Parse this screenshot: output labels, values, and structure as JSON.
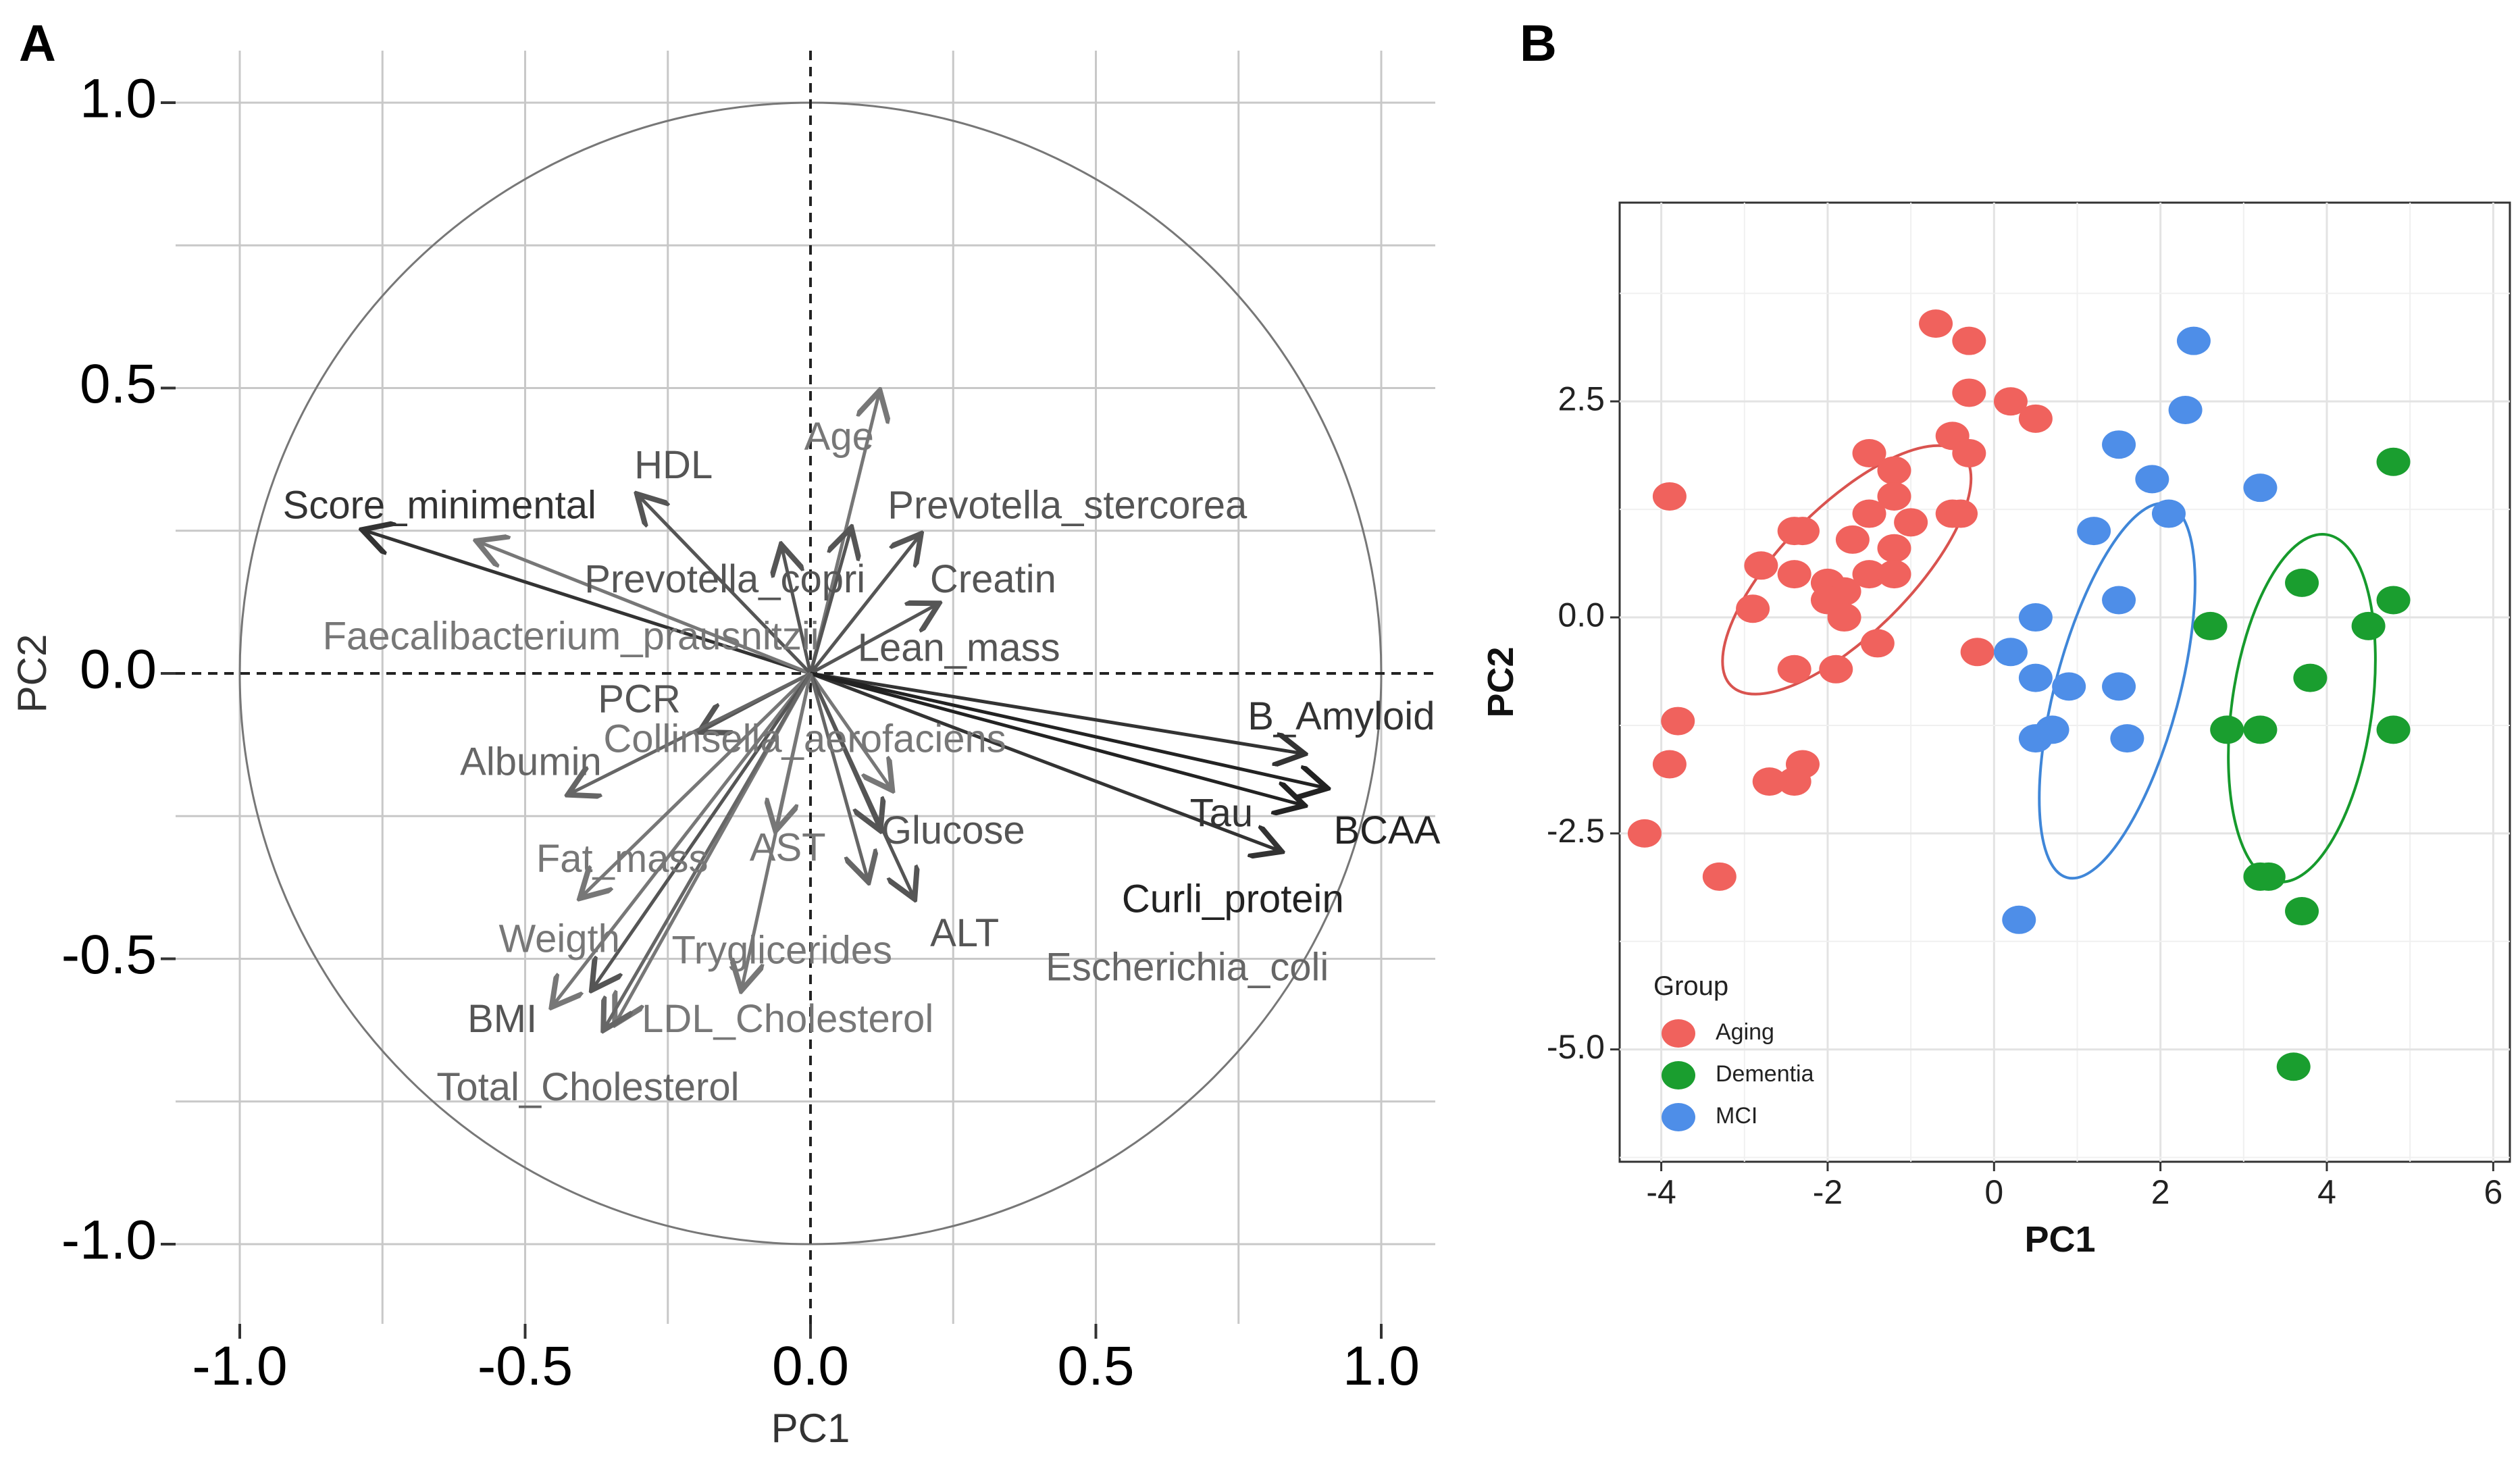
{
  "panels": {
    "a": "A",
    "b": "B"
  },
  "chart_data": [
    {
      "type": "scatter",
      "subtype": "pca-variable-correlation-circle",
      "xlabel": "PC1",
      "ylabel": "PC2",
      "xlim": [
        -1.0,
        1.0
      ],
      "ylim": [
        -1.0,
        1.0
      ],
      "xticks": [
        "-1.0",
        "-0.5",
        "0.0",
        "0.5",
        "1.0"
      ],
      "yticks": [
        "1.0",
        "0.5",
        "0.0",
        "-0.5",
        "-1.0"
      ],
      "grid": true,
      "unit_circle": true,
      "variables": [
        {
          "name": "Score_minimental",
          "x": -0.78,
          "y": 0.25,
          "label_x": -0.65,
          "label_y": 0.29,
          "color": "#333333"
        },
        {
          "name": "Faecalibacterium_prausnitzii",
          "x": -0.58,
          "y": 0.23,
          "label_x": -0.42,
          "label_y": 0.06,
          "color": "#777777"
        },
        {
          "name": "HDL",
          "x": -0.3,
          "y": 0.31,
          "label_x": -0.24,
          "label_y": 0.36,
          "color": "#555555"
        },
        {
          "name": "Age",
          "x": 0.12,
          "y": 0.49,
          "label_x": 0.05,
          "label_y": 0.41,
          "color": "#777777"
        },
        {
          "name": "Prevotella_stercorea",
          "x": 0.19,
          "y": 0.24,
          "label_x": 0.45,
          "label_y": 0.29,
          "color": "#555555"
        },
        {
          "name": "Prevotella_copri",
          "x": -0.05,
          "y": 0.22,
          "label_x": -0.15,
          "label_y": 0.16,
          "color": "#555555"
        },
        {
          "name": "Creatin",
          "x": 0.22,
          "y": 0.12,
          "label_x": 0.32,
          "label_y": 0.16,
          "color": "#555555"
        },
        {
          "name": "Lean_mass",
          "x": 0.07,
          "y": 0.25,
          "label_x": 0.26,
          "label_y": 0.04,
          "color": "#555555"
        },
        {
          "name": "PCR",
          "x": -0.19,
          "y": -0.1,
          "label_x": -0.3,
          "label_y": -0.05,
          "color": "#555555"
        },
        {
          "name": "Albumin",
          "x": -0.42,
          "y": -0.21,
          "label_x": -0.49,
          "label_y": -0.16,
          "color": "#666666"
        },
        {
          "name": "Collinsella_aerofaciens",
          "x": 0.14,
          "y": -0.2,
          "label_x": -0.01,
          "label_y": -0.12,
          "color": "#777777"
        },
        {
          "name": "B_Amyloid",
          "x": 0.86,
          "y": -0.14,
          "label_x": 0.93,
          "label_y": -0.08,
          "color": "#333333"
        },
        {
          "name": "BCAA",
          "x": 0.9,
          "y": -0.2,
          "label_x": 1.01,
          "label_y": -0.28,
          "color": "#222222"
        },
        {
          "name": "Tau",
          "x": 0.82,
          "y": -0.31,
          "label_x": 0.72,
          "label_y": -0.25,
          "color": "#333333"
        },
        {
          "name": "Curli_protein",
          "x": 0.86,
          "y": -0.23,
          "label_x": 0.74,
          "label_y": -0.4,
          "color": "#222222"
        },
        {
          "name": "Glucose",
          "x": 0.12,
          "y": -0.27,
          "label_x": 0.25,
          "label_y": -0.28,
          "color": "#555555"
        },
        {
          "name": "AST",
          "x": -0.06,
          "y": -0.27,
          "label_x": -0.04,
          "label_y": -0.31,
          "color": "#777777"
        },
        {
          "name": "ALT",
          "x": 0.18,
          "y": -0.39,
          "label_x": 0.27,
          "label_y": -0.46,
          "color": "#555555"
        },
        {
          "name": "Escherichia_coli",
          "x": 0.1,
          "y": -0.36,
          "label_x": 0.66,
          "label_y": -0.52,
          "color": "#666666"
        },
        {
          "name": "Fat_mass",
          "x": -0.4,
          "y": -0.39,
          "label_x": -0.33,
          "label_y": -0.33,
          "color": "#777777"
        },
        {
          "name": "Weigth",
          "x": -0.45,
          "y": -0.58,
          "label_x": -0.44,
          "label_y": -0.47,
          "color": "#777777"
        },
        {
          "name": "Tryglicerides",
          "x": -0.12,
          "y": -0.55,
          "label_x": -0.05,
          "label_y": -0.49,
          "color": "#777777"
        },
        {
          "name": "BMI",
          "x": -0.38,
          "y": -0.55,
          "label_x": -0.54,
          "label_y": -0.61,
          "color": "#555555"
        },
        {
          "name": "LDL_Cholesterol",
          "x": -0.34,
          "y": -0.61,
          "label_x": -0.04,
          "label_y": -0.61,
          "color": "#777777"
        },
        {
          "name": "Total_Cholesterol",
          "x": -0.36,
          "y": -0.62,
          "label_x": -0.39,
          "label_y": -0.73,
          "color": "#666666"
        }
      ]
    },
    {
      "type": "scatter",
      "xlabel": "PC1",
      "ylabel": "PC2",
      "xlim": [
        -4.5,
        6.2
      ],
      "ylim": [
        -6.3,
        4.8
      ],
      "xticks": [
        "-4",
        "-2",
        "0",
        "2",
        "4",
        "6"
      ],
      "yticks": [
        "2.5",
        "0.0",
        "-2.5",
        "-5.0"
      ],
      "grid": true,
      "legend": {
        "title": "Group",
        "placement": "bottom-left"
      },
      "series": [
        {
          "name": "Aging",
          "color": "#F0625D",
          "points": [
            [
              -0.7,
              3.4
            ],
            [
              -0.3,
              3.2
            ],
            [
              -0.3,
              2.6
            ],
            [
              0.2,
              2.5
            ],
            [
              0.5,
              2.3
            ],
            [
              -0.5,
              2.1
            ],
            [
              -0.3,
              1.9
            ],
            [
              -1.5,
              1.9
            ],
            [
              -1.2,
              1.7
            ],
            [
              -1.2,
              1.4
            ],
            [
              -1.5,
              1.2
            ],
            [
              -1.0,
              1.1
            ],
            [
              -0.5,
              1.2
            ],
            [
              -0.4,
              1.2
            ],
            [
              -1.7,
              0.9
            ],
            [
              -1.2,
              0.8
            ],
            [
              -2.4,
              1.0
            ],
            [
              -2.3,
              1.0
            ],
            [
              -2.8,
              0.6
            ],
            [
              -2.4,
              0.5
            ],
            [
              -2.0,
              0.4
            ],
            [
              -1.5,
              0.5
            ],
            [
              -1.8,
              0.3
            ],
            [
              -1.2,
              0.5
            ],
            [
              -2.9,
              0.1
            ],
            [
              -2.0,
              0.2
            ],
            [
              -1.8,
              0.0
            ],
            [
              -1.4,
              -0.3
            ],
            [
              -2.4,
              -0.6
            ],
            [
              -1.9,
              -0.6
            ],
            [
              -0.2,
              -0.4
            ],
            [
              -3.9,
              1.4
            ],
            [
              -3.8,
              -1.2
            ],
            [
              -3.9,
              -1.7
            ],
            [
              -2.3,
              -1.7
            ],
            [
              -2.4,
              -1.9
            ],
            [
              -2.7,
              -1.9
            ],
            [
              -4.2,
              -2.5
            ],
            [
              -3.3,
              -3.0
            ]
          ]
        },
        {
          "name": "Dementia",
          "color": "#1A9E2F",
          "points": [
            [
              4.8,
              1.8
            ],
            [
              3.7,
              0.4
            ],
            [
              4.8,
              0.2
            ],
            [
              4.5,
              -0.1
            ],
            [
              2.6,
              -0.1
            ],
            [
              3.8,
              -0.7
            ],
            [
              2.8,
              -1.3
            ],
            [
              3.2,
              -1.3
            ],
            [
              4.8,
              -1.3
            ],
            [
              3.2,
              -3.0
            ],
            [
              3.3,
              -3.0
            ],
            [
              3.7,
              -3.4
            ],
            [
              3.6,
              -5.2
            ]
          ]
        },
        {
          "name": "MCI",
          "color": "#4E8EE8",
          "points": [
            [
              2.4,
              3.2
            ],
            [
              2.3,
              2.4
            ],
            [
              1.5,
              2.0
            ],
            [
              1.9,
              1.6
            ],
            [
              3.2,
              1.5
            ],
            [
              2.1,
              1.2
            ],
            [
              1.2,
              1.0
            ],
            [
              1.5,
              0.2
            ],
            [
              0.5,
              0.0
            ],
            [
              0.2,
              -0.4
            ],
            [
              0.5,
              -0.7
            ],
            [
              0.9,
              -0.8
            ],
            [
              1.5,
              -0.8
            ],
            [
              0.5,
              -1.4
            ],
            [
              0.7,
              -1.3
            ],
            [
              1.6,
              -1.4
            ],
            [
              0.3,
              -3.5
            ]
          ]
        }
      ],
      "ellipses": [
        {
          "name": "Aging",
          "cx": -1.77,
          "cy": 0.55,
          "rx": 4.53,
          "ry": 1.55,
          "angle_deg": 45,
          "color": "#D9534F"
        },
        {
          "name": "MCI",
          "cx": 1.48,
          "cy": -0.85,
          "rx": 5.35,
          "ry": 1.5,
          "angle_deg": 75,
          "color": "#3F86D8"
        },
        {
          "name": "Dementia",
          "cx": 3.7,
          "cy": -1.05,
          "rx": 4.85,
          "ry": 1.7,
          "angle_deg": 82,
          "color": "#169A2C"
        }
      ]
    }
  ]
}
